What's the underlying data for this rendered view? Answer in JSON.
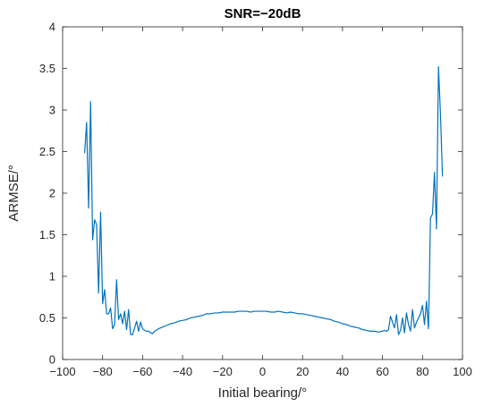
{
  "chart_data": {
    "type": "line",
    "title": "SNR=−20dB",
    "xlabel": "Initial bearing/°",
    "ylabel": "ARMSE/°",
    "xlim": [
      -100,
      100
    ],
    "ylim": [
      0,
      4
    ],
    "xticks": [
      -100,
      -80,
      -60,
      -40,
      -20,
      0,
      20,
      40,
      60,
      80,
      100
    ],
    "xtick_labels": [
      "−100",
      "−80",
      "−60",
      "−40",
      "−20",
      "0",
      "20",
      "40",
      "60",
      "80",
      "100"
    ],
    "yticks": [
      0,
      0.5,
      1,
      1.5,
      2,
      2.5,
      3,
      3.5,
      4
    ],
    "ytick_labels": [
      "0",
      "0.5",
      "1",
      "1.5",
      "2",
      "2.5",
      "3",
      "3.5",
      "4"
    ],
    "grid": false,
    "legend": "none",
    "colors": {
      "line": "#0072BD",
      "axes": "#262626",
      "background": "#ffffff"
    },
    "series": [
      {
        "x": [
          -89,
          -88,
          -87,
          -86,
          -85,
          -84,
          -83,
          -82,
          -81,
          -80,
          -79,
          -78,
          -77,
          -76,
          -75,
          -74,
          -73,
          -72,
          -71,
          -70,
          -69,
          -68,
          -67,
          -66,
          -65,
          -64,
          -63,
          -62,
          -61,
          -60,
          -59,
          -58,
          -57,
          -56,
          -55,
          -54,
          -52,
          -50,
          -48,
          -46,
          -44,
          -42,
          -40,
          -38,
          -36,
          -34,
          -32,
          -30,
          -28,
          -26,
          -24,
          -22,
          -20,
          -18,
          -16,
          -14,
          -12,
          -10,
          -8,
          -6,
          -4,
          -2,
          0,
          2,
          4,
          6,
          8,
          10,
          12,
          14,
          16,
          18,
          20,
          22,
          24,
          26,
          28,
          30,
          32,
          34,
          36,
          38,
          40,
          42,
          44,
          46,
          48,
          50,
          52,
          54,
          56,
          58,
          60,
          61,
          62,
          63,
          64,
          65,
          66,
          67,
          68,
          69,
          70,
          71,
          72,
          73,
          74,
          75,
          76,
          77,
          78,
          79,
          80,
          81,
          82,
          83,
          84,
          85,
          86,
          87,
          88,
          89,
          90
        ],
        "values": [
          2.48,
          2.85,
          1.82,
          3.1,
          1.44,
          1.68,
          1.62,
          0.8,
          1.77,
          0.67,
          0.84,
          0.55,
          0.55,
          0.62,
          0.37,
          0.42,
          0.96,
          0.48,
          0.55,
          0.43,
          0.58,
          0.36,
          0.6,
          0.3,
          0.3,
          0.38,
          0.46,
          0.34,
          0.45,
          0.37,
          0.35,
          0.34,
          0.34,
          0.32,
          0.31,
          0.34,
          0.37,
          0.39,
          0.41,
          0.43,
          0.44,
          0.46,
          0.47,
          0.48,
          0.5,
          0.51,
          0.52,
          0.53,
          0.55,
          0.55,
          0.56,
          0.56,
          0.57,
          0.57,
          0.57,
          0.57,
          0.58,
          0.58,
          0.58,
          0.57,
          0.58,
          0.58,
          0.58,
          0.58,
          0.57,
          0.57,
          0.58,
          0.57,
          0.56,
          0.57,
          0.56,
          0.55,
          0.55,
          0.54,
          0.53,
          0.52,
          0.51,
          0.5,
          0.49,
          0.48,
          0.46,
          0.45,
          0.43,
          0.42,
          0.4,
          0.39,
          0.38,
          0.36,
          0.35,
          0.34,
          0.34,
          0.33,
          0.34,
          0.35,
          0.34,
          0.36,
          0.52,
          0.45,
          0.38,
          0.54,
          0.3,
          0.35,
          0.5,
          0.32,
          0.56,
          0.42,
          0.34,
          0.6,
          0.38,
          0.45,
          0.5,
          0.55,
          0.65,
          0.42,
          0.7,
          0.37,
          1.7,
          1.75,
          2.25,
          1.57,
          3.52,
          2.95,
          2.2
        ]
      }
    ]
  }
}
